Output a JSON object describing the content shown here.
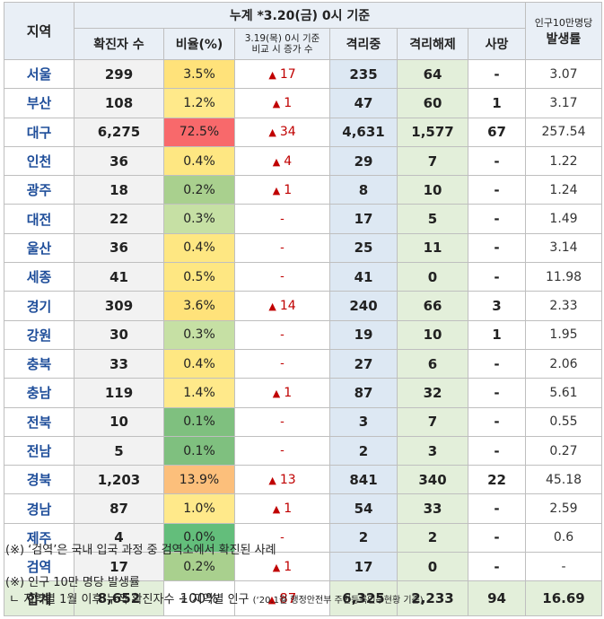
{
  "header": {
    "region": "지역",
    "total_title": "누계 *3.20(금) 0시 기준",
    "confirmed": "확진자 수",
    "ratio": "비율(%)",
    "increase_line1": "3.19(목) 0시 기준",
    "increase_line2": "비교 시 증가 수",
    "isolated": "격리중",
    "released": "격리해제",
    "deaths": "사망",
    "rate_line1": "인구10만명당",
    "rate_line2": "발생률"
  },
  "rows": [
    {
      "region": "서울",
      "confirmed": "299",
      "ratio": "3.5%",
      "ratio_color": "#ffe27a",
      "increase": "17",
      "isolated": "235",
      "released": "64",
      "deaths": "-",
      "rate": "3.07"
    },
    {
      "region": "부산",
      "confirmed": "108",
      "ratio": "1.2%",
      "ratio_color": "#ffe98a",
      "increase": "1",
      "isolated": "47",
      "released": "60",
      "deaths": "1",
      "rate": "3.17"
    },
    {
      "region": "대구",
      "confirmed": "6,275",
      "ratio": "72.5%",
      "ratio_color": "#f8696b",
      "increase": "34",
      "isolated": "4,631",
      "released": "1,577",
      "deaths": "67",
      "rate": "257.54"
    },
    {
      "region": "인천",
      "confirmed": "36",
      "ratio": "0.4%",
      "ratio_color": "#fee782",
      "increase": "4",
      "isolated": "29",
      "released": "7",
      "deaths": "-",
      "rate": "1.22"
    },
    {
      "region": "광주",
      "confirmed": "18",
      "ratio": "0.2%",
      "ratio_color": "#a9d08e",
      "increase": "1",
      "isolated": "8",
      "released": "10",
      "deaths": "-",
      "rate": "1.24"
    },
    {
      "region": "대전",
      "confirmed": "22",
      "ratio": "0.3%",
      "ratio_color": "#c6e0a4",
      "increase": "-",
      "isolated": "17",
      "released": "5",
      "deaths": "-",
      "rate": "1.49"
    },
    {
      "region": "울산",
      "confirmed": "36",
      "ratio": "0.4%",
      "ratio_color": "#fee782",
      "increase": "-",
      "isolated": "25",
      "released": "11",
      "deaths": "-",
      "rate": "3.14"
    },
    {
      "region": "세종",
      "confirmed": "41",
      "ratio": "0.5%",
      "ratio_color": "#fee782",
      "increase": "-",
      "isolated": "41",
      "released": "0",
      "deaths": "-",
      "rate": "11.98"
    },
    {
      "region": "경기",
      "confirmed": "309",
      "ratio": "3.6%",
      "ratio_color": "#ffe27a",
      "increase": "14",
      "isolated": "240",
      "released": "66",
      "deaths": "3",
      "rate": "2.33"
    },
    {
      "region": "강원",
      "confirmed": "30",
      "ratio": "0.3%",
      "ratio_color": "#c6e0a4",
      "increase": "-",
      "isolated": "19",
      "released": "10",
      "deaths": "1",
      "rate": "1.95"
    },
    {
      "region": "충북",
      "confirmed": "33",
      "ratio": "0.4%",
      "ratio_color": "#fee782",
      "increase": "-",
      "isolated": "27",
      "released": "6",
      "deaths": "-",
      "rate": "2.06"
    },
    {
      "region": "충남",
      "confirmed": "119",
      "ratio": "1.4%",
      "ratio_color": "#ffe98a",
      "increase": "1",
      "isolated": "87",
      "released": "32",
      "deaths": "-",
      "rate": "5.61"
    },
    {
      "region": "전북",
      "confirmed": "10",
      "ratio": "0.1%",
      "ratio_color": "#7fc07f",
      "increase": "-",
      "isolated": "3",
      "released": "7",
      "deaths": "-",
      "rate": "0.55"
    },
    {
      "region": "전남",
      "confirmed": "5",
      "ratio": "0.1%",
      "ratio_color": "#7fc07f",
      "increase": "-",
      "isolated": "2",
      "released": "3",
      "deaths": "-",
      "rate": "0.27"
    },
    {
      "region": "경북",
      "confirmed": "1,203",
      "ratio": "13.9%",
      "ratio_color": "#fcbf7b",
      "increase": "13",
      "isolated": "841",
      "released": "340",
      "deaths": "22",
      "rate": "45.18"
    },
    {
      "region": "경남",
      "confirmed": "87",
      "ratio": "1.0%",
      "ratio_color": "#ffe98a",
      "increase": "1",
      "isolated": "54",
      "released": "33",
      "deaths": "-",
      "rate": "2.59"
    },
    {
      "region": "제주",
      "confirmed": "4",
      "ratio": "0.0%",
      "ratio_color": "#63be7b",
      "increase": "-",
      "isolated": "2",
      "released": "2",
      "deaths": "-",
      "rate": "0.6"
    },
    {
      "region": "검역",
      "confirmed": "17",
      "ratio": "0.2%",
      "ratio_color": "#a9d08e",
      "increase": "1",
      "isolated": "17",
      "released": "0",
      "deaths": "-",
      "rate": "-"
    }
  ],
  "total": {
    "region": "합계",
    "confirmed": "8,652",
    "ratio": "100%",
    "increase": "87",
    "isolated": "6,325",
    "released": "2,233",
    "deaths": "94",
    "rate": "16.69"
  },
  "triangle_symbol": "▲",
  "notes": {
    "note1": "(※) ‘검역’은 국내 입국 과정 중 검역소에서 확진된 사례",
    "note2": "(※) 인구 10만 명당 발생률",
    "note3_main": "ㄴ 지역별 1월 이후 누적 확진자수 ÷ 지역별 인구",
    "note3_source": "(‘20.1월 행정안전부 주민등록인구현황 기준)"
  },
  "colors": {
    "header_bg": "#e9eff6",
    "region_text": "#1f4e9a",
    "increase_text": "#c00000",
    "isolated_bg": "#dde8f3",
    "released_bg": "#e3efda",
    "confirmed_bg": "#f2f2f2"
  }
}
